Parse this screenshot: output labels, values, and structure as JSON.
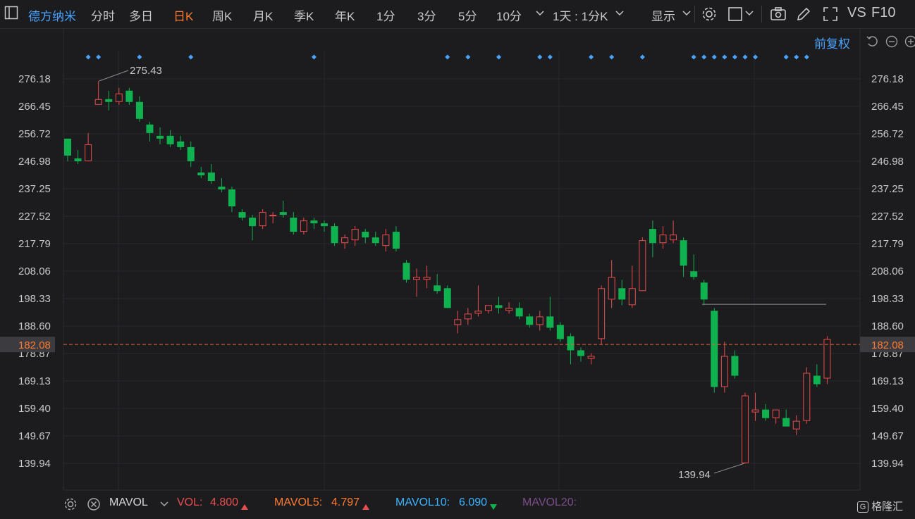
{
  "toolbar": {
    "stock_name": "德方纳米",
    "tabs": [
      "分时",
      "多日",
      "日K",
      "周K",
      "月K",
      "季K",
      "年K",
      "1分",
      "3分",
      "5分",
      "10分"
    ],
    "active_tab": "日K",
    "period_select": "1天 : 1分K",
    "display_label": "显示",
    "vs_label": "VS",
    "f10_label": "F10"
  },
  "adjust_label": "前复权",
  "price_axis": {
    "ticks": [
      "276.18",
      "266.45",
      "256.72",
      "246.98",
      "237.25",
      "227.52",
      "217.79",
      "208.06",
      "198.33",
      "188.60",
      "178.87",
      "169.13",
      "159.40",
      "149.67",
      "139.94"
    ],
    "current_price": "182.08",
    "hidden_tick_label": "178.87"
  },
  "annotations": {
    "high_label": "275.43",
    "low_label": "139.94"
  },
  "bottom_bar": {
    "indicator": "MAVOL",
    "vol_label": "VOL:",
    "vol_value": "4.800",
    "mavol5_label": "MAVOL5:",
    "mavol5_value": "4.797",
    "mavol10_label": "MAVOL10:",
    "mavol10_value": "6.090",
    "mavol20_label": "MAVOL20:",
    "brand": "格隆汇"
  },
  "colors": {
    "up": "#e84d4d",
    "down": "#0fb24f",
    "accent_orange": "#ff7a2e",
    "accent_blue": "#4aa3ff",
    "background": "#1c1c1f"
  },
  "chart_data": {
    "type": "candlestick",
    "ylim": [
      134,
      282
    ],
    "current_price": 182.08,
    "reference_level": 196.3,
    "high_mark": 275.43,
    "low_mark": 139.94,
    "marker_indices": [
      2,
      3,
      7,
      12,
      24,
      37,
      39,
      42,
      46,
      47,
      51,
      53,
      56,
      61,
      62,
      63,
      64,
      65,
      66,
      67,
      70,
      71,
      72
    ],
    "candles": [
      {
        "o": 255,
        "c": 249,
        "h": 255,
        "l": 247
      },
      {
        "o": 248,
        "c": 247,
        "h": 251,
        "l": 246
      },
      {
        "o": 247,
        "c": 253,
        "h": 257,
        "l": 247
      },
      {
        "o": 267,
        "c": 269,
        "h": 275.43,
        "l": 267
      },
      {
        "o": 269,
        "c": 268,
        "h": 272,
        "l": 265
      },
      {
        "o": 268,
        "c": 271,
        "h": 273,
        "l": 267
      },
      {
        "o": 272,
        "c": 268,
        "h": 273,
        "l": 267
      },
      {
        "o": 268,
        "c": 262,
        "h": 270,
        "l": 261
      },
      {
        "o": 260,
        "c": 257,
        "h": 261,
        "l": 254
      },
      {
        "o": 256,
        "c": 255,
        "h": 259,
        "l": 253
      },
      {
        "o": 256,
        "c": 253,
        "h": 258,
        "l": 252
      },
      {
        "o": 254,
        "c": 252,
        "h": 256,
        "l": 251
      },
      {
        "o": 252,
        "c": 247,
        "h": 254,
        "l": 245
      },
      {
        "o": 243,
        "c": 242,
        "h": 245,
        "l": 241
      },
      {
        "o": 243,
        "c": 240,
        "h": 246,
        "l": 239
      },
      {
        "o": 238,
        "c": 237,
        "h": 241,
        "l": 236
      },
      {
        "o": 237,
        "c": 231,
        "h": 238,
        "l": 229
      },
      {
        "o": 229,
        "c": 227,
        "h": 230,
        "l": 226
      },
      {
        "o": 227,
        "c": 224,
        "h": 228,
        "l": 219
      },
      {
        "o": 224,
        "c": 229,
        "h": 230,
        "l": 223
      },
      {
        "o": 228,
        "c": 228,
        "h": 229,
        "l": 225
      },
      {
        "o": 229,
        "c": 228,
        "h": 233,
        "l": 227
      },
      {
        "o": 227,
        "c": 222,
        "h": 229,
        "l": 221
      },
      {
        "o": 222,
        "c": 226,
        "h": 227,
        "l": 221
      },
      {
        "o": 226,
        "c": 225,
        "h": 227,
        "l": 223
      },
      {
        "o": 225,
        "c": 224,
        "h": 226,
        "l": 222
      },
      {
        "o": 224,
        "c": 218,
        "h": 225,
        "l": 217
      },
      {
        "o": 218,
        "c": 220,
        "h": 221,
        "l": 216
      },
      {
        "o": 219,
        "c": 223,
        "h": 224,
        "l": 217
      },
      {
        "o": 222,
        "c": 220,
        "h": 223,
        "l": 218
      },
      {
        "o": 220,
        "c": 218,
        "h": 222,
        "l": 217
      },
      {
        "o": 217,
        "c": 221,
        "h": 223,
        "l": 215
      },
      {
        "o": 222,
        "c": 216,
        "h": 224,
        "l": 215
      },
      {
        "o": 211,
        "c": 205,
        "h": 212,
        "l": 204
      },
      {
        "o": 205,
        "c": 206,
        "h": 209,
        "l": 199
      },
      {
        "o": 205,
        "c": 206,
        "h": 210,
        "l": 202
      },
      {
        "o": 203,
        "c": 201,
        "h": 207,
        "l": 200
      },
      {
        "o": 202,
        "c": 195,
        "h": 203,
        "l": 195
      },
      {
        "o": 189,
        "c": 191,
        "h": 194,
        "l": 186
      },
      {
        "o": 191,
        "c": 193,
        "h": 195,
        "l": 189
      },
      {
        "o": 193,
        "c": 194,
        "h": 203,
        "l": 192
      },
      {
        "o": 194,
        "c": 196,
        "h": 196,
        "l": 193
      },
      {
        "o": 196,
        "c": 195,
        "h": 199,
        "l": 193
      },
      {
        "o": 194,
        "c": 195,
        "h": 197,
        "l": 193
      },
      {
        "o": 195,
        "c": 192,
        "h": 197,
        "l": 191
      },
      {
        "o": 192,
        "c": 189,
        "h": 193,
        "l": 188
      },
      {
        "o": 189,
        "c": 192,
        "h": 194,
        "l": 187
      },
      {
        "o": 192,
        "c": 188,
        "h": 199,
        "l": 187
      },
      {
        "o": 189,
        "c": 184,
        "h": 190,
        "l": 183
      },
      {
        "o": 185,
        "c": 180,
        "h": 186,
        "l": 175
      },
      {
        "o": 180,
        "c": 178,
        "h": 181,
        "l": 176
      },
      {
        "o": 177,
        "c": 178,
        "h": 179,
        "l": 175
      },
      {
        "o": 184,
        "c": 202,
        "h": 203,
        "l": 182
      },
      {
        "o": 198,
        "c": 206,
        "h": 212,
        "l": 195
      },
      {
        "o": 202,
        "c": 198,
        "h": 205,
        "l": 196
      },
      {
        "o": 196,
        "c": 202,
        "h": 210,
        "l": 195
      },
      {
        "o": 201,
        "c": 219,
        "h": 220,
        "l": 201
      },
      {
        "o": 223,
        "c": 218,
        "h": 226,
        "l": 213
      },
      {
        "o": 218,
        "c": 221,
        "h": 224,
        "l": 216
      },
      {
        "o": 219,
        "c": 221,
        "h": 226,
        "l": 218
      },
      {
        "o": 219,
        "c": 210,
        "h": 220,
        "l": 206
      },
      {
        "o": 208,
        "c": 206,
        "h": 214,
        "l": 205
      },
      {
        "o": 204,
        "c": 198,
        "h": 205,
        "l": 196
      },
      {
        "o": 194,
        "c": 167,
        "h": 195,
        "l": 165
      },
      {
        "o": 167,
        "c": 178,
        "h": 183,
        "l": 165
      },
      {
        "o": 178,
        "c": 171,
        "h": 180,
        "l": 170
      },
      {
        "o": 140,
        "c": 164,
        "h": 165,
        "l": 139.94
      },
      {
        "o": 158,
        "c": 159,
        "h": 165,
        "l": 155
      },
      {
        "o": 159,
        "c": 156,
        "h": 161,
        "l": 155
      },
      {
        "o": 156,
        "c": 159,
        "h": 159,
        "l": 154
      },
      {
        "o": 156,
        "c": 153,
        "h": 159,
        "l": 153
      },
      {
        "o": 152,
        "c": 155,
        "h": 157,
        "l": 150
      },
      {
        "o": 155,
        "c": 172,
        "h": 174,
        "l": 154
      },
      {
        "o": 171,
        "c": 168,
        "h": 175,
        "l": 167
      },
      {
        "o": 170,
        "c": 184,
        "h": 185,
        "l": 168
      }
    ]
  }
}
